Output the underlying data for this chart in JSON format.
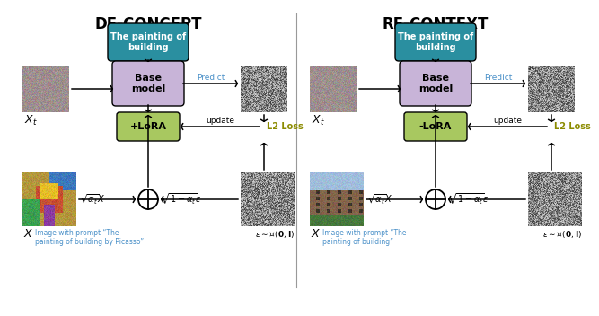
{
  "title_left": "DE-CONCEPT",
  "title_right": "RE-CONTEXT",
  "prompt_box_text": "The painting of\nbuilding",
  "base_model_text": "Base\nmodel",
  "lora_left_text": "+LoRA",
  "lora_right_text": "-LoRA",
  "predict_text": "Predict",
  "update_text": "update",
  "l2_loss_text": "L2 Loss",
  "sqrt_alpha_text": "$\\sqrt{\\alpha_t}X$",
  "sqrt_one_minus_text": "$\\sqrt{1-\\alpha_t}\\epsilon$",
  "caption_left": "Image with prompt “The\npainting of building by Picasso”",
  "caption_right": "Image with prompt “The\npainting of building”",
  "teal_color": "#2A8FA0",
  "lavender_color": "#C8B4D8",
  "green_color": "#A8C860",
  "predict_color": "#4A90C8",
  "l2_color": "#8B8B00",
  "caption_color": "#4A90C8",
  "title_color": "#000000",
  "bg_color": "#ffffff",
  "divider_color": "#999999"
}
